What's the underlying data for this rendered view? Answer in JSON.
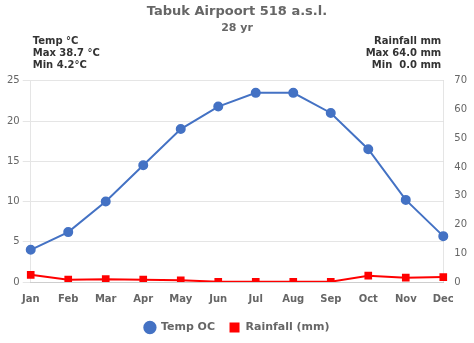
{
  "chart_data": {
    "type": "line",
    "title": "Tabuk Airpoort 518 a.s.l.",
    "subtitle": "28 yr",
    "annotations": [
      [
        "Temp °C",
        "Max 38.7 °C",
        "Min 4.2°C"
      ],
      [
        "Rainfall mm",
        "Max 64.0 mm",
        "Min  0.0 mm"
      ]
    ],
    "categories": [
      "Jan",
      "Feb",
      "Mar",
      "Apr",
      "May",
      "Jun",
      "Jul",
      "Aug",
      "Sep",
      "Oct",
      "Nov",
      "Dec"
    ],
    "series": [
      {
        "name": "Temp OC",
        "color": "#4472C4",
        "marker": "circle",
        "values": [
          4.0,
          6.2,
          10.0,
          14.5,
          19.0,
          21.8,
          23.5,
          23.5,
          21.0,
          16.5,
          10.2,
          5.7
        ]
      },
      {
        "name": "Rainfall (mm)",
        "color": "#FF0000",
        "marker": "square",
        "axis": "y2",
        "values": [
          2.5,
          0.8,
          1.0,
          0.8,
          0.6,
          0.1,
          0.05,
          0.1,
          0.1,
          2.2,
          1.5,
          1.7
        ]
      }
    ],
    "ylim": [
      0,
      25
    ],
    "yticks": [
      0,
      5,
      10,
      15,
      20,
      25
    ],
    "y2lim": [
      0,
      70
    ],
    "y2ticks": [
      0,
      10,
      20,
      30,
      40,
      50,
      60,
      70
    ],
    "grid": true,
    "legend": "bottom"
  }
}
